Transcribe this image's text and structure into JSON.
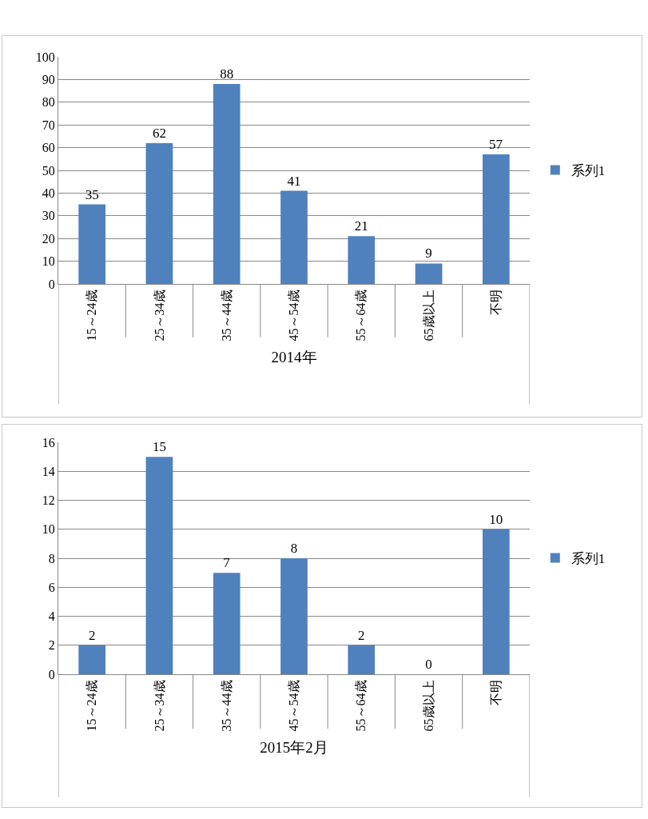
{
  "chart_data": [
    {
      "type": "bar",
      "xlabel": "2014年",
      "categories": [
        "15～24歳",
        "25～34歳",
        "35～44歳",
        "45～54歳",
        "55～64歳",
        "65歳以上",
        "不明"
      ],
      "series": [
        {
          "name": "系列1",
          "color": "#4f81bd",
          "values": [
            35,
            62,
            88,
            41,
            21,
            9,
            57
          ]
        }
      ],
      "ylim": [
        0,
        100
      ],
      "yticks": [
        0,
        10,
        20,
        30,
        40,
        50,
        60,
        70,
        80,
        90,
        100
      ],
      "grid": "y",
      "legend": "right",
      "data_labels": true
    },
    {
      "type": "bar",
      "xlabel": "2015年2月",
      "categories": [
        "15～24歳",
        "25～34歳",
        "35～44歳",
        "45～54歳",
        "55～64歳",
        "65歳以上",
        "不明"
      ],
      "series": [
        {
          "name": "系列1",
          "color": "#4f81bd",
          "values": [
            2,
            15,
            7,
            8,
            2,
            0,
            10
          ]
        }
      ],
      "ylim": [
        0,
        16
      ],
      "yticks": [
        0,
        2,
        4,
        6,
        8,
        10,
        12,
        14,
        16
      ],
      "grid": "y",
      "legend": "right",
      "data_labels": true
    }
  ]
}
